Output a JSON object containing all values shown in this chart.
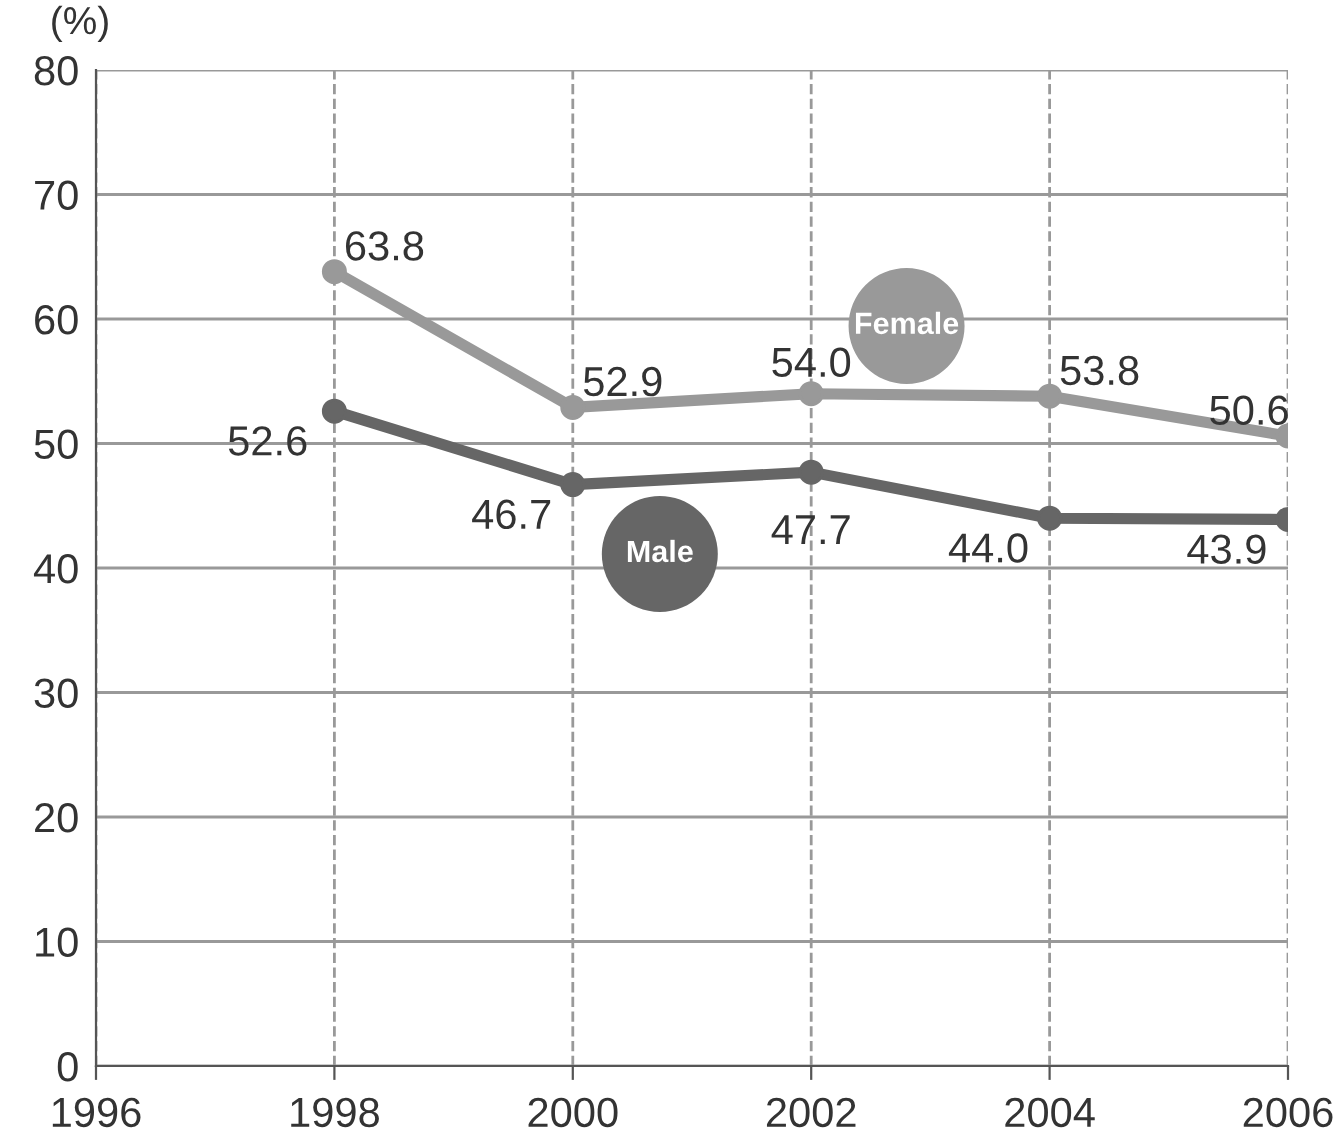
{
  "chart_data": {
    "type": "line",
    "ylabel": "(%)",
    "x": [
      1998,
      2000,
      2002,
      2004,
      2006
    ],
    "series": [
      {
        "name": "Female",
        "color": "#999999",
        "values": [
          63.8,
          52.9,
          54.0,
          53.8,
          50.6
        ],
        "value_labels": [
          "63.8",
          "52.9",
          "54.0",
          "53.8",
          "50.6"
        ]
      },
      {
        "name": "Male",
        "color": "#666666",
        "values": [
          52.6,
          46.7,
          47.7,
          44.0,
          43.9
        ],
        "value_labels": [
          "52.6",
          "46.7",
          "47.7",
          "44.0",
          "43.9"
        ]
      }
    ],
    "xlim": [
      1996,
      2006
    ],
    "xticks": [
      1996,
      1998,
      2000,
      2002,
      2004,
      2006
    ],
    "ylim": [
      0,
      80
    ],
    "yticks": [
      0,
      10,
      20,
      30,
      40,
      50,
      60,
      70,
      80
    ],
    "grid": true,
    "marker": "circle",
    "line_style": "solid"
  }
}
